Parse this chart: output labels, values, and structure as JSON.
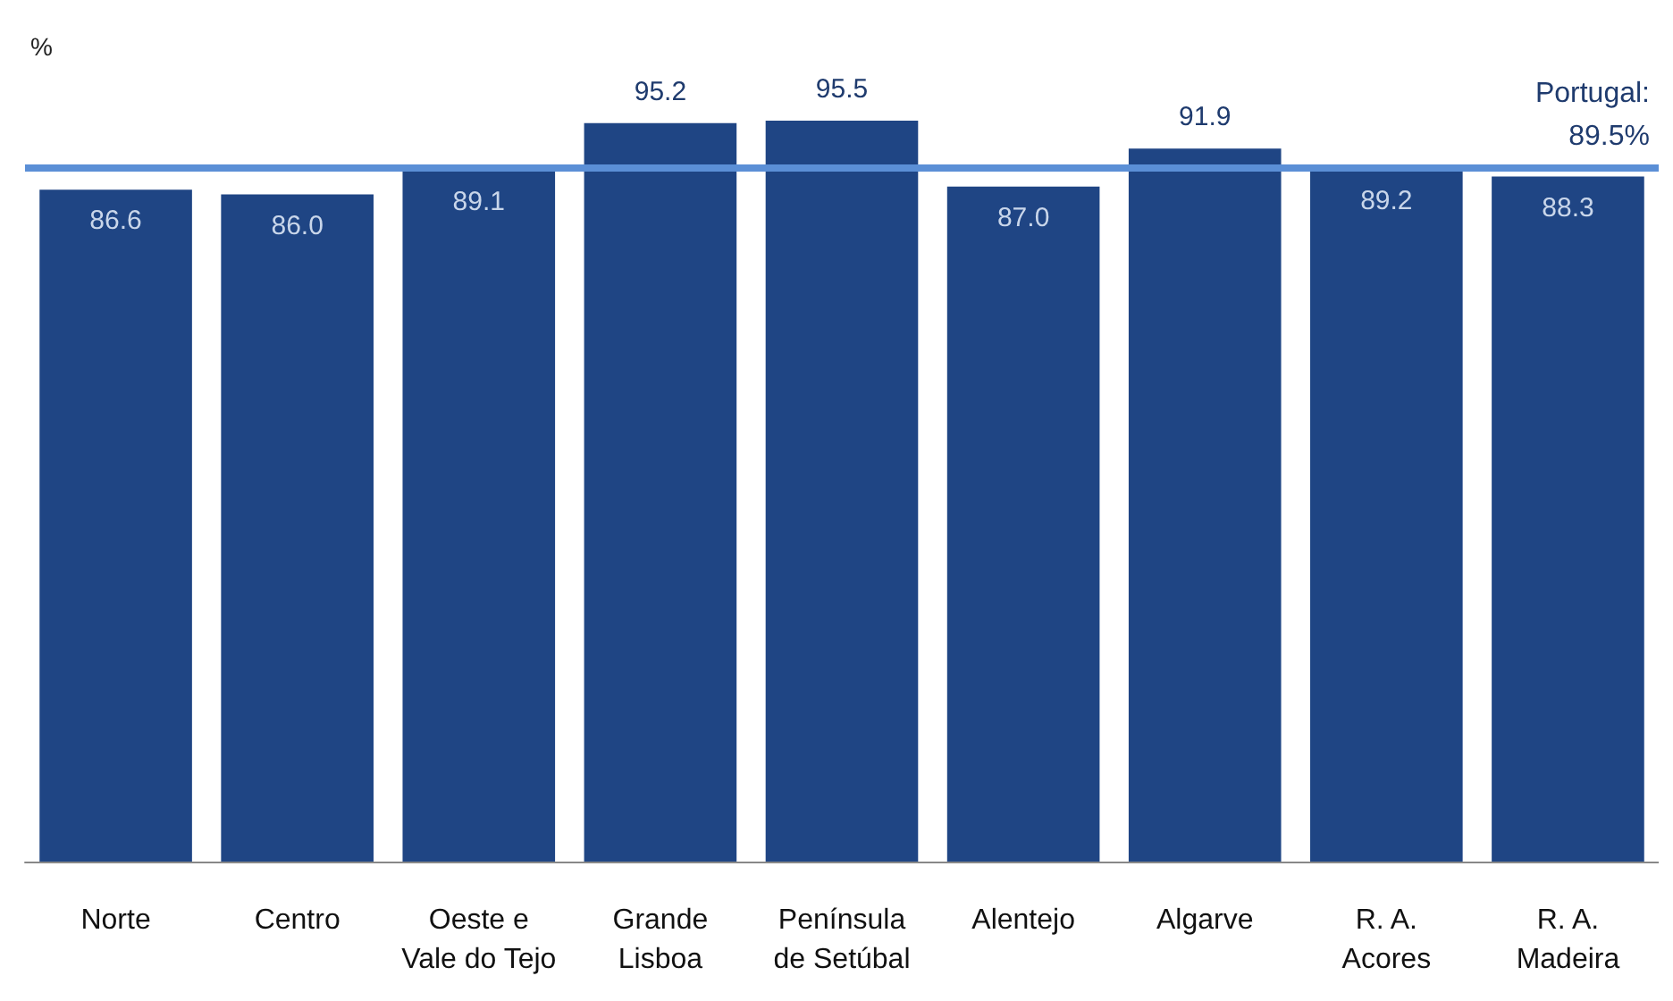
{
  "chart_data": {
    "type": "bar",
    "ylabel": "%",
    "categories": [
      "Norte",
      "Centro",
      "Oeste e\nVale do Tejo",
      "Grande\nLisboa",
      "Península\nde Setúbal",
      "Alentejo",
      "Algarve",
      "R. A.\nAcores",
      "R. A.\nMadeira"
    ],
    "values": [
      86.6,
      86.0,
      89.1,
      95.2,
      95.5,
      87.0,
      91.9,
      89.2,
      88.3
    ],
    "color": "#1f4584",
    "value_labels": [
      "86.6",
      "86.0",
      "89.1",
      "95.2",
      "95.5",
      "87.0",
      "91.9",
      "89.2",
      "88.3"
    ],
    "ref_lines": [
      {
        "axis": "y",
        "value": 89.5,
        "label": "Portugal:\n89.5%",
        "color": "#5b8fd6"
      }
    ]
  }
}
